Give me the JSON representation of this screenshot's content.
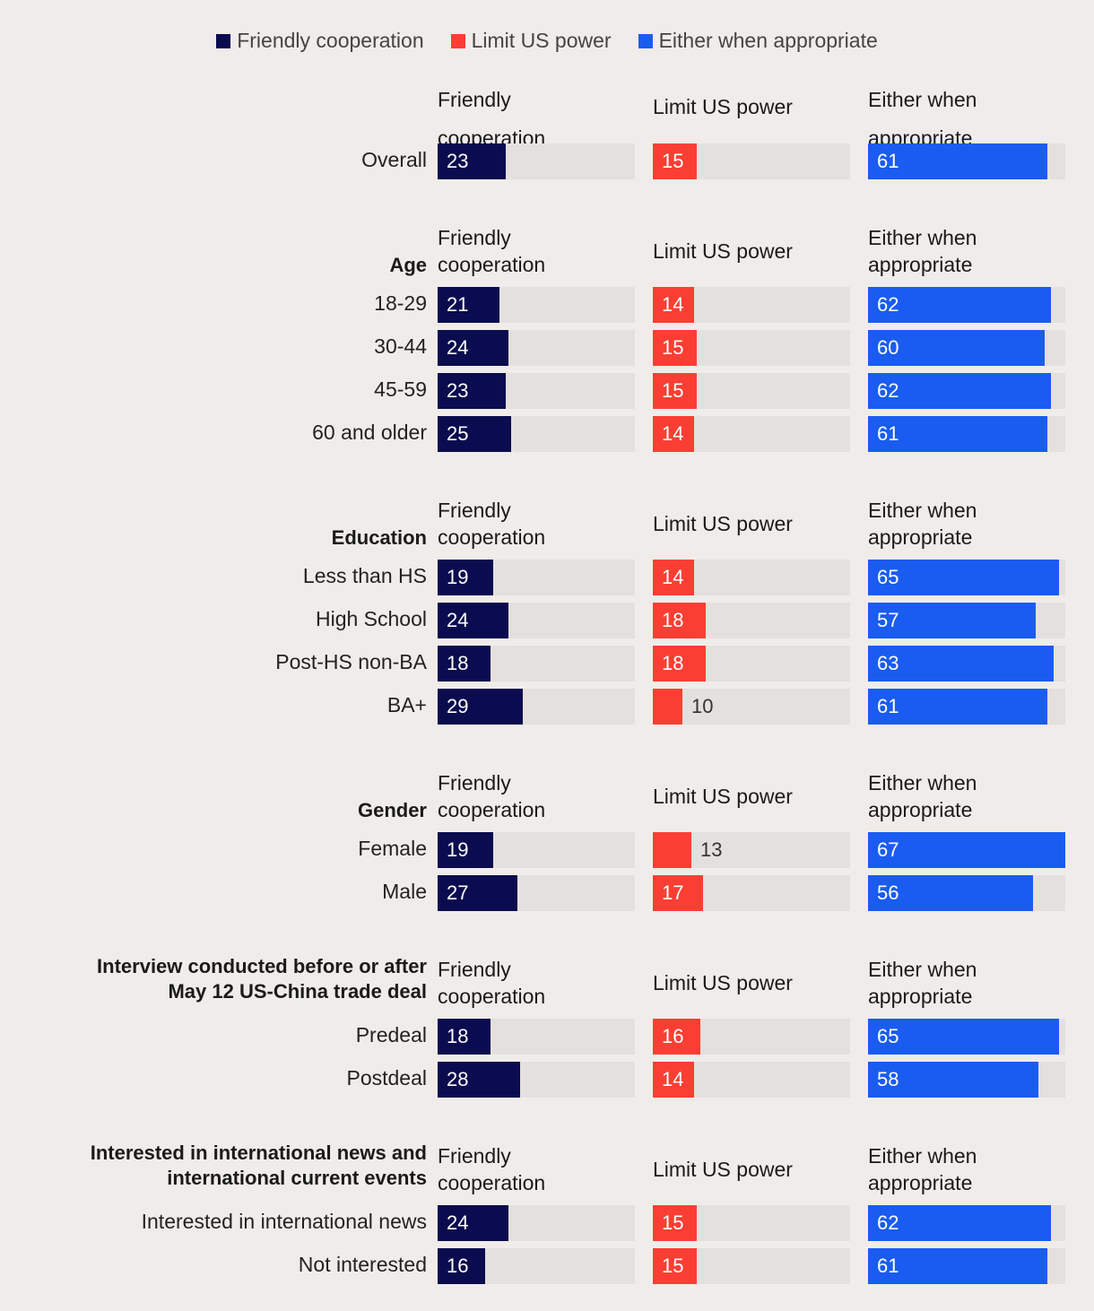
{
  "legend": [
    {
      "label": "Friendly cooperation",
      "color": "#0b0b4f"
    },
    {
      "label": "Limit US power",
      "color": "#fb3e33"
    },
    {
      "label": "Either when appropriate",
      "color": "#1a5cf0"
    }
  ],
  "column_headers": [
    [
      "Friendly",
      "cooperation"
    ],
    [
      "Limit US power"
    ],
    [
      "Either when",
      "appropriate"
    ]
  ],
  "chart_data": {
    "type": "bar",
    "orientation": "horizontal",
    "value_range": [
      0,
      67
    ],
    "series": [
      {
        "name": "Friendly cooperation",
        "color": "#0b0b4f"
      },
      {
        "name": "Limit US power",
        "color": "#fb3e33"
      },
      {
        "name": "Either when appropriate",
        "color": "#1a5cf0"
      }
    ],
    "groups": [
      {
        "title": [],
        "rows": [
          {
            "label": "Overall",
            "values": [
              23,
              15,
              61
            ]
          }
        ]
      },
      {
        "title": [
          "Age"
        ],
        "rows": [
          {
            "label": "18-29",
            "values": [
              21,
              14,
              62
            ]
          },
          {
            "label": "30-44",
            "values": [
              24,
              15,
              60
            ]
          },
          {
            "label": "45-59",
            "values": [
              23,
              15,
              62
            ]
          },
          {
            "label": "60 and older",
            "values": [
              25,
              14,
              61
            ]
          }
        ]
      },
      {
        "title": [
          "Education"
        ],
        "rows": [
          {
            "label": "Less than HS",
            "values": [
              19,
              14,
              65
            ]
          },
          {
            "label": "High School",
            "values": [
              24,
              18,
              57
            ]
          },
          {
            "label": "Post-HS non-BA",
            "values": [
              18,
              18,
              63
            ]
          },
          {
            "label": "BA+",
            "values": [
              29,
              10,
              61
            ]
          }
        ]
      },
      {
        "title": [
          "Gender"
        ],
        "rows": [
          {
            "label": "Female",
            "values": [
              19,
              13,
              67
            ]
          },
          {
            "label": "Male",
            "values": [
              27,
              17,
              56
            ]
          }
        ]
      },
      {
        "title": [
          "Interview conducted before or after",
          "May 12 US-China trade deal"
        ],
        "rows": [
          {
            "label": "Predeal",
            "values": [
              18,
              16,
              65
            ]
          },
          {
            "label": "Postdeal",
            "values": [
              28,
              14,
              58
            ]
          }
        ]
      },
      {
        "title": [
          "Interested in international news and",
          "international current events"
        ],
        "rows": [
          {
            "label": "Interested in international news",
            "values": [
              24,
              15,
              62
            ]
          },
          {
            "label": "Not interested",
            "values": [
              16,
              15,
              61
            ]
          }
        ]
      }
    ]
  }
}
